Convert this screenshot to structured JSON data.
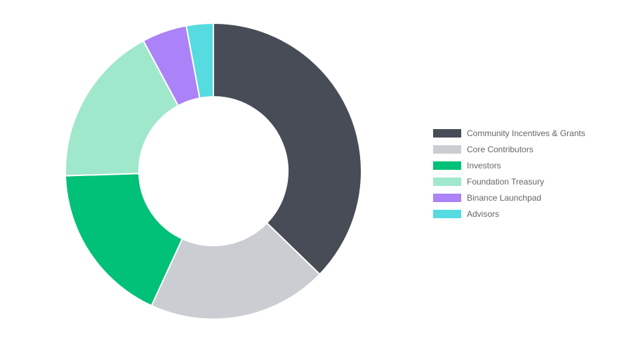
{
  "chart_data": {
    "type": "pie",
    "variant": "doughnut",
    "legend_position": "right",
    "categories": [
      "Community Incentives & Grants",
      "Core Contributors",
      "Investors",
      "Foundation Treasury",
      "Binance Launchpad",
      "Advisors"
    ],
    "values": [
      38,
      20,
      18,
      18,
      5,
      3
    ],
    "unit": "%",
    "colors": [
      "#474c56",
      "#cacdd2",
      "#00c177",
      "#9fe8cc",
      "#ab82f7",
      "#55dbe0"
    ]
  }
}
